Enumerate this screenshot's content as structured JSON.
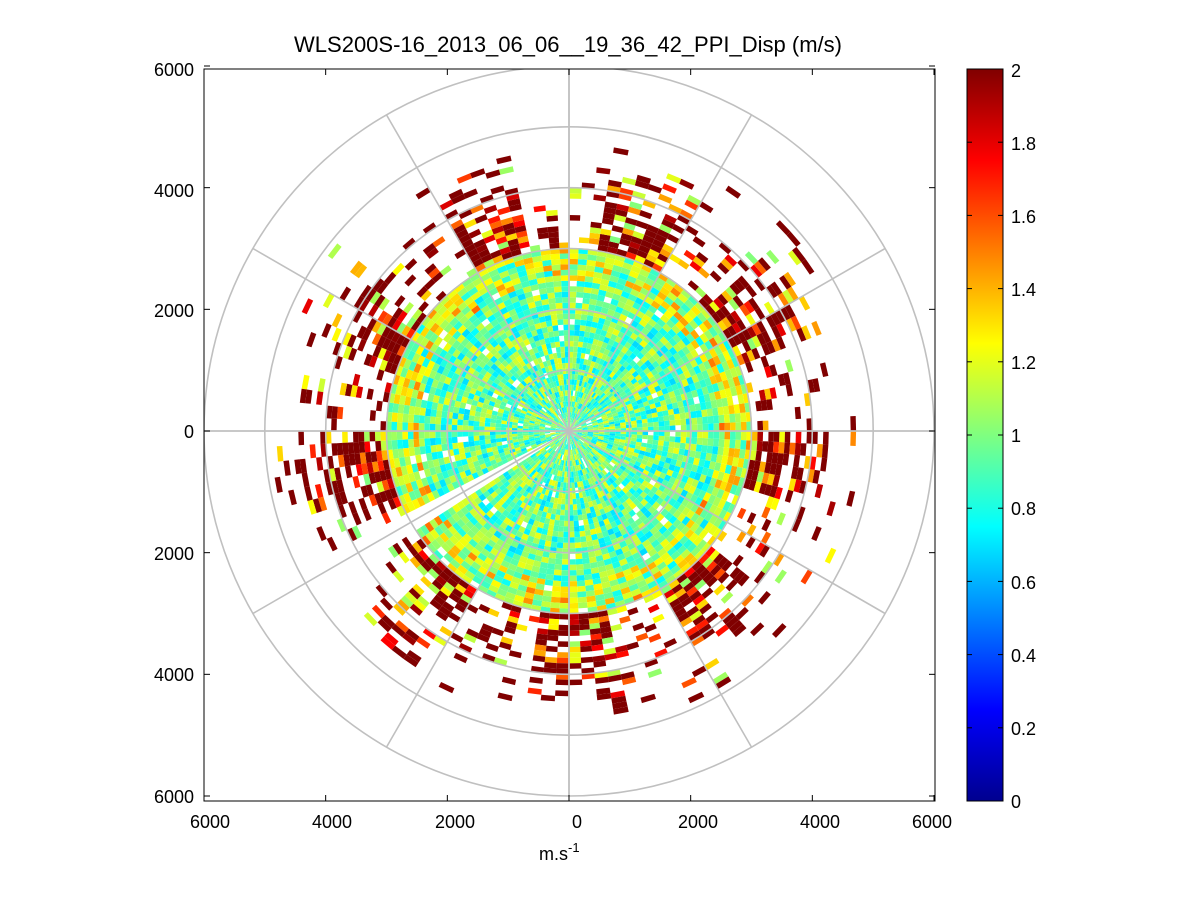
{
  "chart_data": {
    "type": "heatmap",
    "subtype": "polar-ppi-scan",
    "title": "WLS200S-16_2013_06_06__19_36_42_PPI_Disp (m/s)",
    "xlabel_base": "m.s",
    "xlabel_exp": "-1",
    "ylabel": "",
    "xlim": [
      -6000,
      6000
    ],
    "ylim": [
      -6000,
      6000
    ],
    "x_ticks": [
      "6000",
      "4000",
      "2000",
      "0",
      "2000",
      "4000",
      "6000"
    ],
    "y_ticks": [
      "6000",
      "4000",
      "2000",
      "0",
      "2000",
      "4000",
      "6000"
    ],
    "range_rings_m": [
      1000,
      2000,
      3000,
      4000,
      5000,
      6000
    ],
    "spoke_angles_deg": [
      0,
      30,
      60,
      90,
      120,
      150,
      180,
      210,
      240,
      270,
      300,
      330
    ],
    "colorbar": {
      "colormap": "jet",
      "min": 0,
      "max": 2,
      "ticks": [
        "0",
        "0.2",
        "0.4",
        "0.6",
        "0.8",
        "1",
        "1.2",
        "1.4",
        "1.6",
        "1.8",
        "2"
      ],
      "levels": 64
    },
    "field": {
      "quantity": "Doppler dispersion",
      "unit": "m/s",
      "typical_value_inner": 1.0,
      "typical_value_outer": 2.0,
      "dense_coverage_radius_m": 3000,
      "max_coverage_radius_m": 6000,
      "gap_sector_deg": [
        207,
        212
      ]
    }
  }
}
